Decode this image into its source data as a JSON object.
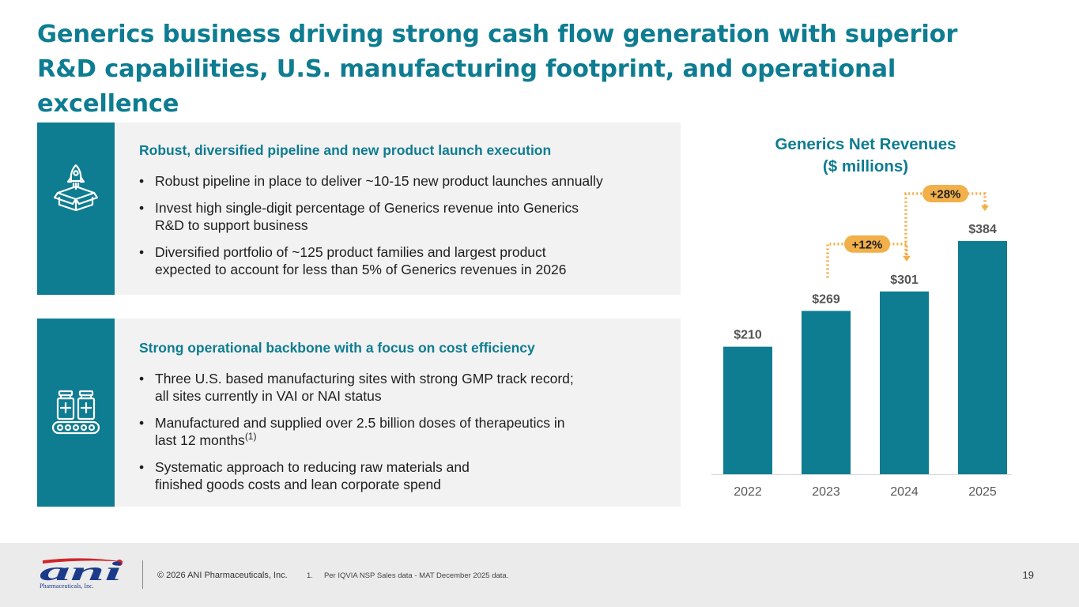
{
  "title": "Generics business driving strong cash flow generation with superior R&D capabilities, U.S. manufacturing footprint, and operational excellence",
  "panels": [
    {
      "icon": "rocket-box-icon",
      "heading": "Robust, diversified pipeline and new product launch execution",
      "bullets": [
        {
          "line1": "Robust pipeline in place to deliver ~10-15 new product launches annually",
          "line2": ""
        },
        {
          "line1": "Invest high single-digit percentage of Generics revenue into Generics",
          "line2": "R&D to support business"
        },
        {
          "line1": "Diversified portfolio of ~125 product families and largest product",
          "line2": "expected to account for less than 5% of Generics revenues in 2026"
        }
      ]
    },
    {
      "icon": "manufacturing-conveyor-icon",
      "heading": "Strong operational backbone with a focus on cost efficiency",
      "bullets": [
        {
          "line1": "Three U.S. based manufacturing sites with strong GMP track record;",
          "line2": "all sites currently in VAI or NAI status"
        },
        {
          "line1": "Manufactured and supplied over 2.5 billion doses of therapeutics in",
          "line2": "last 12 months",
          "sup": "(1)"
        },
        {
          "line1": "Systematic approach to reducing raw materials and",
          "line2": "finished goods costs and lean corporate spend"
        }
      ]
    }
  ],
  "chart_data": {
    "type": "bar",
    "title": "Generics Net Revenues",
    "subtitle": "($ millions)",
    "categories": [
      "2022",
      "2023",
      "2024",
      "2025"
    ],
    "values": [
      210,
      269,
      301,
      384
    ],
    "data_labels": [
      "$210",
      "$269",
      "$301",
      "$384"
    ],
    "ylim": [
      0,
      384
    ],
    "grid": false,
    "annotations": [
      {
        "label": "+12%",
        "from": "2023",
        "to": "2024"
      },
      {
        "label": "+28%",
        "from": "2024",
        "to": "2025"
      }
    ],
    "colors": {
      "bar": "#0e7c91",
      "annotation": "#f2b04a",
      "axis_text": "#595959",
      "label": "#555555"
    }
  },
  "footer": {
    "logo_text": "ani",
    "logo_subtext": "Pharmaceuticals, Inc.",
    "copyright": "© 2026 ANI Pharmaceuticals, Inc.",
    "footnote_number": "1.",
    "footnote_text": "Per IQVIA NSP Sales data - MAT December 2025 data.",
    "page_number": "19"
  },
  "colors": {
    "brand_teal": "#0e7c91",
    "panel_bg": "#f2f2f2",
    "footer_bg": "#ebebeb",
    "logo_navy": "#1b3b8a",
    "logo_red": "#d2232a"
  }
}
